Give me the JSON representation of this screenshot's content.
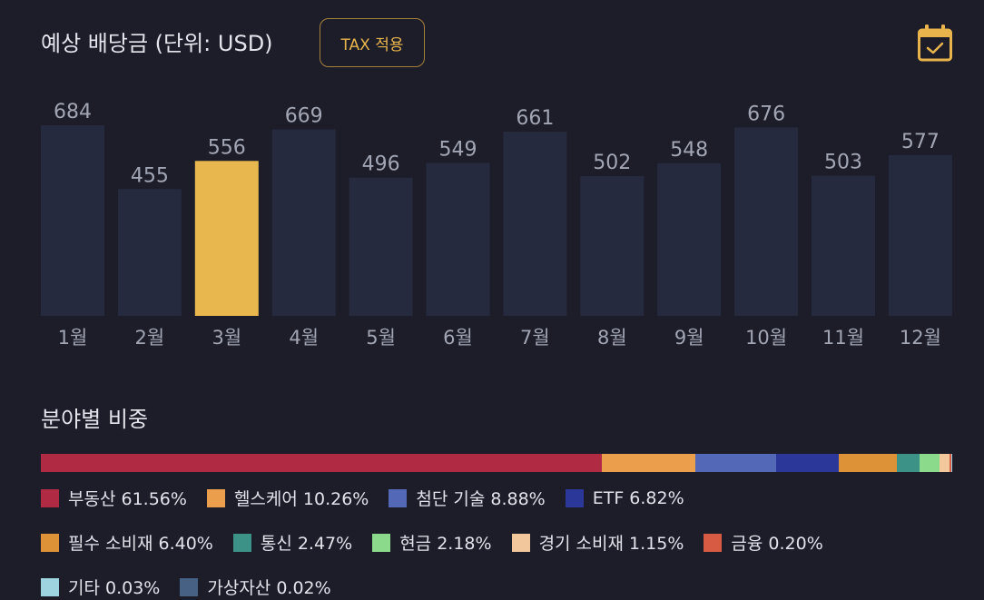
{
  "header": {
    "title": "예상 배당금 (단위: USD)",
    "tax_button_label": "TAX 적용",
    "calendar_icon": "calendar-check-icon"
  },
  "colors": {
    "background": "#1c1d29",
    "bar_default": "#262a3e",
    "bar_highlight": "#e8b84f",
    "label_text": "#a2a5b4",
    "accent": "#e9b44c"
  },
  "chart_data": {
    "type": "bar",
    "title": "예상 배당금 (단위: USD)",
    "categories": [
      "1월",
      "2월",
      "3월",
      "4월",
      "5월",
      "6월",
      "7월",
      "8월",
      "9월",
      "10월",
      "11월",
      "12월"
    ],
    "values": [
      684,
      455,
      556,
      669,
      496,
      549,
      661,
      502,
      548,
      676,
      503,
      577
    ],
    "highlighted_category": "3월",
    "ylim": [
      0,
      684
    ],
    "grid": false,
    "legend": "none"
  },
  "sectors": {
    "title": "분야별 비중",
    "items": [
      {
        "label": "부동산 61.56%",
        "percent": 61.56,
        "color": "#b02a44"
      },
      {
        "label": "헬스케어 10.26%",
        "percent": 10.26,
        "color": "#eb9f4c"
      },
      {
        "label": "첨단 기술 8.88%",
        "percent": 8.88,
        "color": "#5468b8"
      },
      {
        "label": "ETF 6.82%",
        "percent": 6.82,
        "color": "#2b389a"
      },
      {
        "label": "필수 소비재 6.40%",
        "percent": 6.4,
        "color": "#de9237"
      },
      {
        "label": "통신 2.47%",
        "percent": 2.47,
        "color": "#3d9288"
      },
      {
        "label": "현금 2.18%",
        "percent": 2.18,
        "color": "#8bd98b"
      },
      {
        "label": "경기 소비재 1.15%",
        "percent": 1.15,
        "color": "#f2c79c"
      },
      {
        "label": "금융 0.20%",
        "percent": 0.2,
        "color": "#d75a42"
      },
      {
        "label": "기타 0.03%",
        "percent": 0.03,
        "color": "#9dd4e0"
      },
      {
        "label": "가상자산 0.02%",
        "percent": 0.02,
        "color": "#466183"
      }
    ]
  }
}
